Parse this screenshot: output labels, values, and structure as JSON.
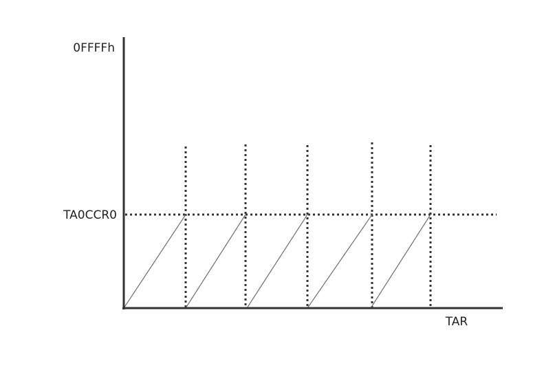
{
  "labels": {
    "y_max": "0FFFFh",
    "y_compare": "TA0CCR0",
    "x_axis": "TAR"
  }
}
